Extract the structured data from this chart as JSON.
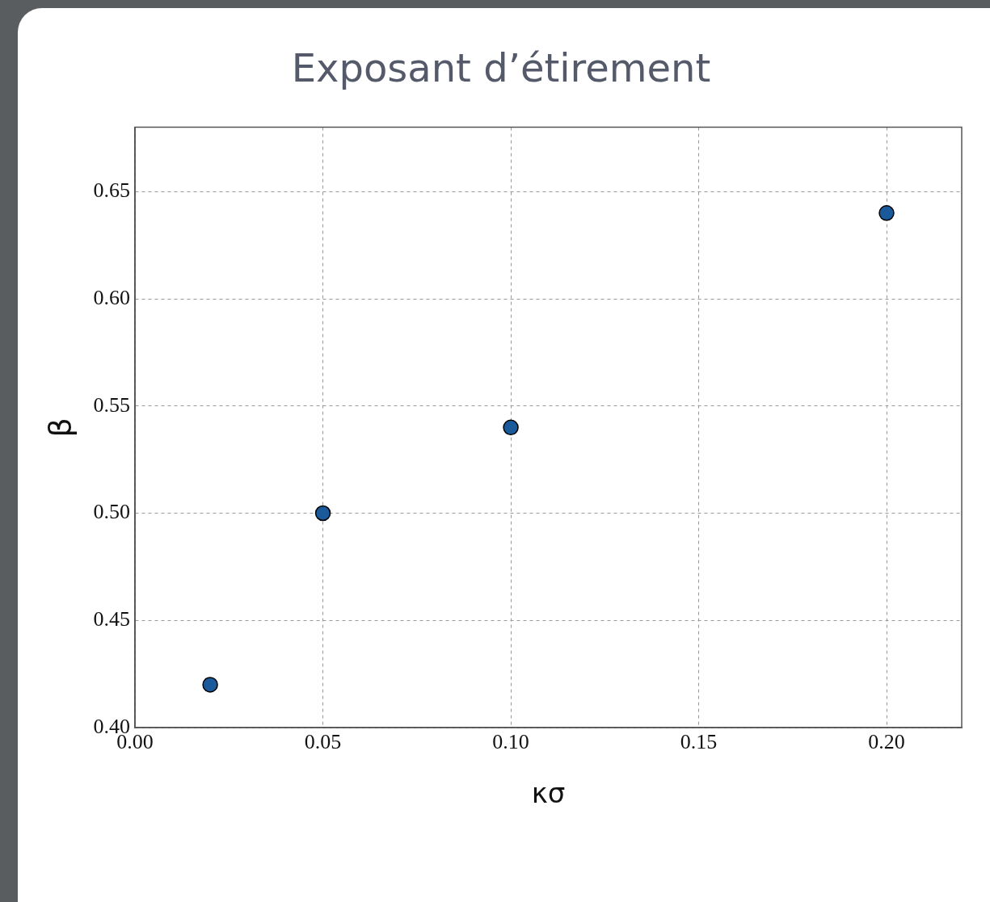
{
  "chart_data": {
    "type": "scatter",
    "title": "Exposant d’étirement",
    "xlabel": "κσ",
    "ylabel": "β",
    "x": [
      0.02,
      0.05,
      0.1,
      0.2
    ],
    "series": [
      {
        "color": "#1a5a9a",
        "values": [
          0.42,
          0.5,
          0.54,
          0.64
        ]
      }
    ],
    "xlim": [
      0,
      0.22
    ],
    "xticks": [
      {
        "value": 0,
        "label": "0.00"
      },
      {
        "value": 0.05,
        "label": "0.05"
      },
      {
        "value": 0.1,
        "label": "0.10"
      },
      {
        "value": 0.15,
        "label": "0.15"
      },
      {
        "value": 0.2,
        "label": "0.20"
      }
    ],
    "ylim": [
      0.4,
      0.68
    ],
    "yticks": [
      {
        "value": 0.4,
        "label": "0.40"
      },
      {
        "value": 0.45,
        "label": "0.45"
      },
      {
        "value": 0.5,
        "label": "0.50"
      },
      {
        "value": 0.55,
        "label": "0.55"
      },
      {
        "value": 0.6,
        "label": "0.60"
      },
      {
        "value": 0.65,
        "label": "0.65"
      }
    ],
    "grid": true,
    "marker": "circle",
    "legend": false
  }
}
